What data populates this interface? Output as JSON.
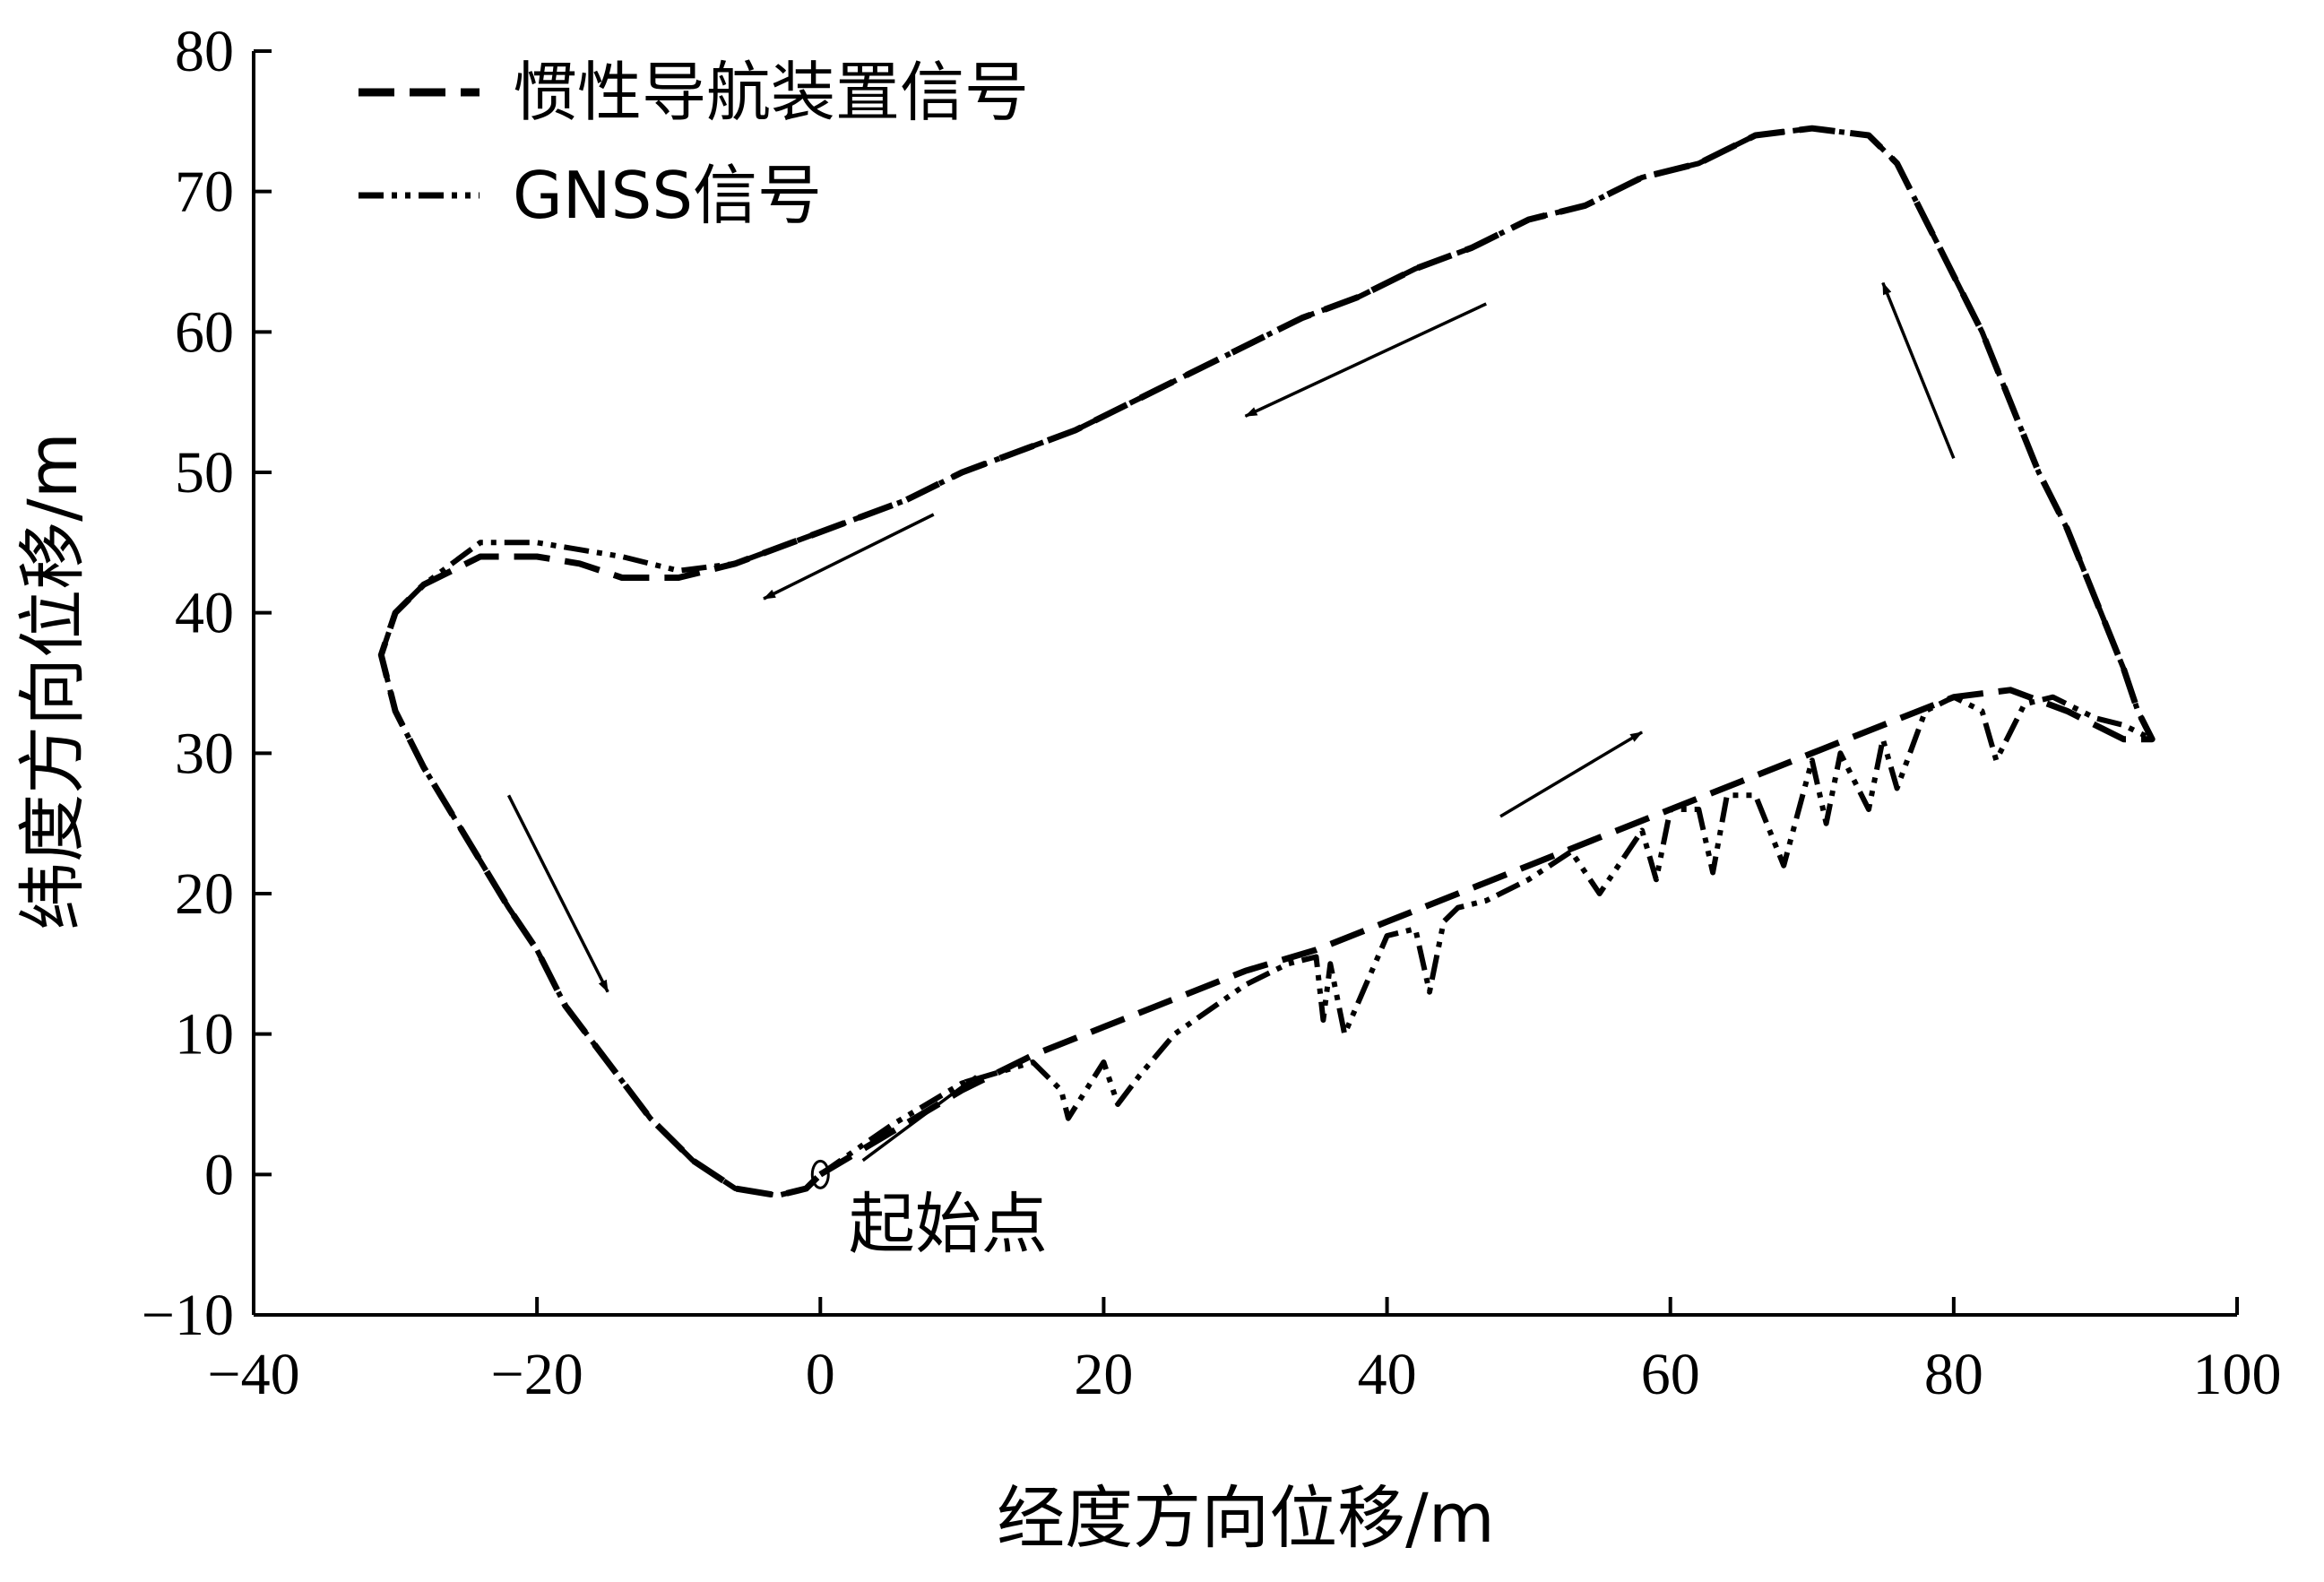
{
  "chart_data": {
    "type": "line",
    "title": "",
    "xlabel": "经度方向位移/m",
    "ylabel": "纬度方向位移/m",
    "xlim": [
      -40,
      100
    ],
    "ylim": [
      -10,
      80
    ],
    "x_ticks": [
      -40,
      -20,
      0,
      20,
      40,
      60,
      80,
      100
    ],
    "y_ticks": [
      -10,
      0,
      10,
      20,
      30,
      40,
      50,
      60,
      70,
      80
    ],
    "x_tick_labels": [
      "−40",
      "−20",
      "0",
      "20",
      "40",
      "60",
      "80",
      "100"
    ],
    "y_tick_labels": [
      "−10",
      "0",
      "10",
      "20",
      "30",
      "40",
      "50",
      "60",
      "70",
      "80"
    ],
    "grid": false,
    "legend_position": "top-left",
    "series": [
      {
        "name": "惯性导航装置信号",
        "style": "dashed",
        "color": "#000000",
        "x": [
          0,
          5,
          10,
          15,
          20,
          25,
          30,
          35,
          40,
          45,
          50,
          55,
          60,
          65,
          70,
          75,
          80,
          84,
          88,
          92,
          94,
          93,
          92,
          90,
          88,
          86,
          84,
          82,
          81,
          80,
          79,
          78,
          76,
          74,
          70,
          66,
          62,
          58,
          54,
          50,
          46,
          42,
          38,
          34,
          30,
          26,
          22,
          18,
          14,
          10,
          6,
          2,
          -2,
          -6,
          -10,
          -14,
          -17,
          -20,
          -24,
          -28,
          -30,
          -31,
          -30,
          -28,
          -25,
          -22,
          -20,
          -18,
          -15,
          -12,
          -9,
          -6,
          -3,
          -1,
          0
        ],
        "y": [
          0,
          3,
          6,
          8.5,
          10.5,
          12.5,
          14.5,
          16,
          18,
          20,
          22,
          24,
          26,
          28,
          30,
          32,
          34,
          34.5,
          33,
          31,
          31,
          33,
          36,
          41,
          46,
          50,
          55,
          60,
          62,
          64,
          66,
          68,
          72,
          74,
          74.5,
          74,
          72,
          71,
          69,
          68,
          66,
          64.5,
          62.5,
          61,
          59,
          57,
          55,
          53,
          51.5,
          50,
          48,
          46.5,
          45,
          43.5,
          42.5,
          42.5,
          43.5,
          44,
          44,
          42,
          40,
          37,
          33,
          29,
          24,
          19,
          16,
          12,
          8,
          4,
          1,
          -1,
          -1.5,
          -1,
          0
        ]
      },
      {
        "name": "GNSS信号",
        "style": "dashdot",
        "color": "#000000",
        "x": [
          0,
          5,
          10,
          15,
          17,
          17.5,
          20,
          21,
          22.5,
          25,
          30,
          33,
          35,
          35.5,
          36,
          37,
          40,
          42,
          43,
          44,
          45,
          47,
          50,
          53,
          55,
          58,
          59,
          60,
          62,
          63,
          64,
          66,
          68,
          70,
          71,
          72,
          74,
          75,
          76,
          78,
          80,
          82,
          83,
          85,
          87,
          90,
          92,
          94,
          93,
          92,
          90,
          88,
          86,
          84,
          82,
          81,
          80,
          79,
          78,
          76,
          74,
          70,
          66,
          62,
          58,
          54,
          50,
          46,
          42,
          38,
          34,
          30,
          26,
          22,
          18,
          14,
          10,
          6,
          2,
          -2,
          -6,
          -10,
          -14,
          -17,
          -20,
          -24,
          -28,
          -30,
          -31,
          -30,
          -28,
          -25,
          -22,
          -20,
          -18,
          -15,
          -12,
          -9,
          -6,
          -3,
          -1,
          0
        ],
        "y": [
          0,
          3.5,
          6.5,
          8,
          6,
          4,
          8,
          5,
          7,
          10,
          13.5,
          15,
          15.5,
          11,
          15,
          10,
          17,
          17.5,
          13,
          18,
          19,
          19.5,
          21,
          23,
          20,
          24.5,
          21,
          26,
          26,
          21.5,
          27,
          27,
          22,
          29.5,
          25,
          30,
          26,
          31,
          27.5,
          33,
          34,
          33,
          29.5,
          33.5,
          34,
          32.5,
          32,
          31,
          33,
          36,
          41,
          46,
          50,
          55,
          60,
          62,
          64,
          66,
          68,
          72,
          74,
          74.5,
          74,
          72,
          71,
          69,
          68,
          66,
          64.5,
          62.5,
          61,
          59,
          57,
          55,
          53,
          51.5,
          50,
          48,
          46.5,
          45,
          43.5,
          43,
          44,
          44.5,
          45,
          45,
          42,
          40,
          37,
          33,
          29,
          24,
          19,
          16,
          12,
          8,
          4,
          1,
          -1,
          -1.5,
          -1,
          0
        ]
      }
    ],
    "direction_arrows": [
      {
        "from": [
          3,
          1
        ],
        "to": [
          11,
          7
        ]
      },
      {
        "from": [
          48,
          25.5
        ],
        "to": [
          58,
          31.5
        ]
      },
      {
        "from": [
          80,
          51
        ],
        "to": [
          75,
          63.5
        ]
      },
      {
        "from": [
          47,
          62
        ],
        "to": [
          30,
          54
        ]
      },
      {
        "from": [
          8,
          47
        ],
        "to": [
          -4,
          41
        ]
      },
      {
        "from": [
          -22,
          27
        ],
        "to": [
          -15,
          13
        ]
      }
    ],
    "annotations": [
      {
        "text": "起始点",
        "x": 2,
        "y": -3.5
      }
    ]
  }
}
